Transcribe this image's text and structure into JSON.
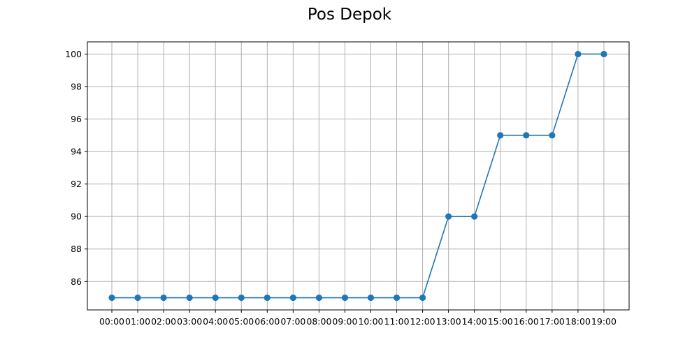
{
  "chart_data": {
    "type": "line",
    "title": "Pos Depok",
    "xlabel": "",
    "ylabel": "",
    "categories": [
      "00:00",
      "01:00",
      "02:00",
      "03:00",
      "04:00",
      "05:00",
      "06:00",
      "07:00",
      "08:00",
      "09:00",
      "10:00",
      "11:00",
      "12:00",
      "13:00",
      "14:00",
      "15:00",
      "16:00",
      "17:00",
      "18:00",
      "19:00"
    ],
    "series": [
      {
        "values": [
          85,
          85,
          85,
          85,
          85,
          85,
          85,
          85,
          85,
          85,
          85,
          85,
          85,
          90,
          90,
          95,
          95,
          95,
          100,
          100
        ],
        "color": "#1f77b4",
        "marker": "circle"
      }
    ],
    "yticks": [
      86,
      88,
      90,
      92,
      94,
      96,
      98,
      100
    ],
    "ylim": [
      84.25,
      100.75
    ],
    "grid": true,
    "legend": "none"
  }
}
